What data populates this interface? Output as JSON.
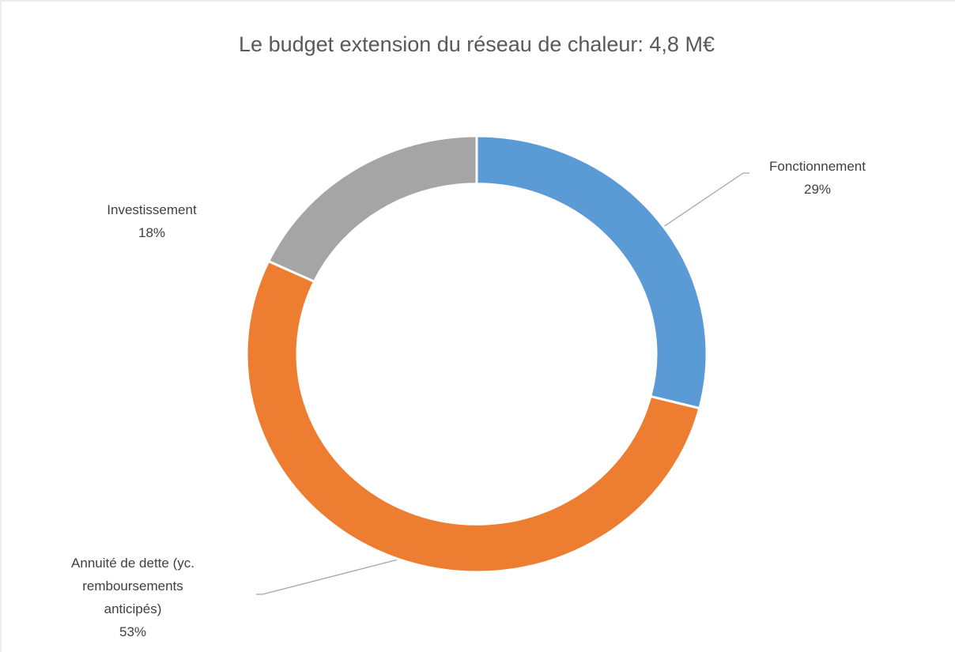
{
  "chart_data": {
    "type": "donut",
    "title": "Le budget extension du réseau de chaleur: 4,8 M€",
    "categories": [
      "Fonctionnement",
      "Annuité de dette (yc. remboursements anticipés)",
      "Investissement"
    ],
    "values": [
      29,
      53,
      18
    ],
    "value_labels": [
      "29%",
      "53%",
      "18%"
    ],
    "colors": [
      "#5b9bd5",
      "#ed7d31",
      "#a5a5a5"
    ]
  }
}
